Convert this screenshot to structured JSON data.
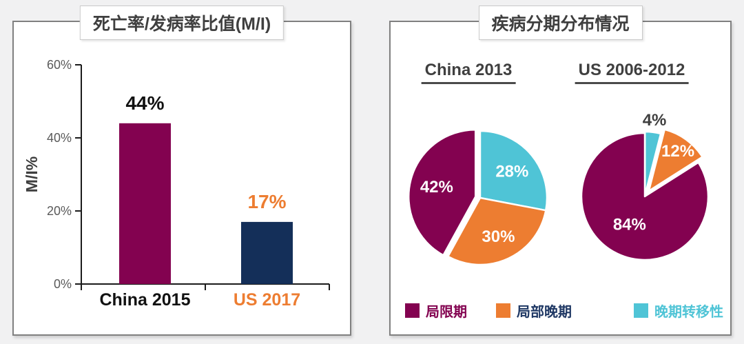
{
  "panels": {
    "left": {
      "title": "死亡率/发病率比值(M/I)"
    },
    "right": {
      "title": "疾病分期分布情况"
    }
  },
  "colors": {
    "magenta": "#830250",
    "navy": "#142F59",
    "orange": "#ED7D31",
    "cyan": "#4FC4D6",
    "navy_text": "#1F3864",
    "dark_text": "#3F3F3F",
    "axis_text": "#595959",
    "black_text": "#111111",
    "panel_border": "#808080",
    "page_bg": "#F1F1F2"
  },
  "chart_data": [
    {
      "type": "bar",
      "title": "死亡率/发病率比值(M/I)",
      "ylabel": "M/I%",
      "ylim": [
        0,
        60
      ],
      "yticks": [
        "0%",
        "20%",
        "40%",
        "60%"
      ],
      "grid": false,
      "categories": [
        "China 2015",
        "US 2017"
      ],
      "values": [
        44,
        17
      ],
      "value_labels": [
        "44%",
        "17%"
      ],
      "bar_colors": [
        "#830250",
        "#142F59"
      ],
      "value_label_colors": [
        "#111111",
        "#ED7D31"
      ],
      "category_label_colors": [
        "#111111",
        "#ED7D31"
      ]
    },
    {
      "type": "pie",
      "title": "疾病分期分布情况",
      "legend_position": "bottom",
      "legend": [
        {
          "label": "局限期",
          "color": "#830250",
          "text_color": "#830250"
        },
        {
          "label": "局部晚期",
          "color": "#ED7D31",
          "text_color": "#1F3864"
        },
        {
          "label": "晚期转移性",
          "color": "#4FC4D6",
          "text_color": "#4FC4D6"
        }
      ],
      "pies": [
        {
          "name": "China 2013",
          "slices": [
            {
              "series": "晚期转移性",
              "value": 28,
              "label": "28%",
              "color": "#4FC4D6",
              "label_color": "#FFFFFF",
              "explode": 0,
              "label_outside": false
            },
            {
              "series": "局部晚期",
              "value": 30,
              "label": "30%",
              "color": "#ED7D31",
              "label_color": "#FFFFFF",
              "explode": 0,
              "label_outside": false
            },
            {
              "series": "局限期",
              "value": 42,
              "label": "42%",
              "color": "#830250",
              "label_color": "#FFFFFF",
              "explode": 7,
              "label_outside": false
            }
          ]
        },
        {
          "name": "US 2006-2012",
          "slices": [
            {
              "series": "晚期转移性",
              "value": 4,
              "label": "4%",
              "color": "#4FC4D6",
              "label_color": "#3F3F3F",
              "explode": 2,
              "label_outside": true
            },
            {
              "series": "局部晚期",
              "value": 12,
              "label": "12%",
              "color": "#ED7D31",
              "label_color": "#FFFFFF",
              "explode": 10,
              "label_outside": false
            },
            {
              "series": "局限期",
              "value": 84,
              "label": "84%",
              "color": "#830250",
              "label_color": "#FFFFFF",
              "explode": 0,
              "label_outside": false
            }
          ]
        }
      ]
    }
  ]
}
